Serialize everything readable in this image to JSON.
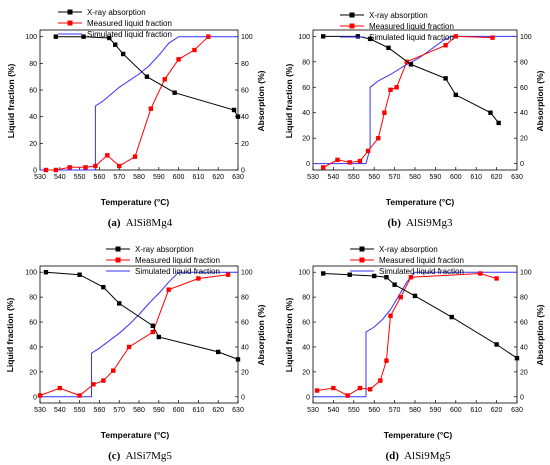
{
  "panels": [
    {
      "caption_letter": "(a)",
      "caption_text": "AlSi8Mg4",
      "xlabel": "Temperature (°C)",
      "ylabel_left": "Liquid fraction (%)",
      "ylabel_right": "Absorption (%)",
      "legend": [
        "X-ray absorption",
        "Measured liquid fraction",
        "Simulated liquid fraction"
      ]
    },
    {
      "caption_letter": "(b)",
      "caption_text": "AlSi9Mg3",
      "xlabel": "Temperature (°C)",
      "ylabel_left": "Liquid fraction (%)",
      "ylabel_right": "Absorption (%)",
      "legend": [
        "X-ray absorption",
        "Measured liquid fraction",
        "Simulated liquid fraction"
      ]
    },
    {
      "caption_letter": "(c)",
      "caption_text": "AlSi7Mg5",
      "xlabel": "Temperature (°C)",
      "ylabel_left": "Liquid fraction (%)",
      "ylabel_right": "Absorption (%)",
      "legend": [
        "X-ray absorption",
        "Measured liquid fraction",
        "Simulated liquid fraction"
      ]
    },
    {
      "caption_letter": "(d)",
      "caption_text": "AlSi9Mg5",
      "xlabel": "Temperature (°C)",
      "ylabel_left": "Liquid fraction (%)",
      "ylabel_right": "Absorption (%)",
      "legend": [
        "X-ray absorption",
        "Measured liquid  fraction",
        "Simulated liquid fraction"
      ]
    }
  ],
  "colors": {
    "xray": "#000000",
    "measured": "#ff0000",
    "simulated": "#3333ff"
  },
  "chart_data": [
    {
      "type": "line",
      "x_ticks": [
        530,
        540,
        550,
        560,
        570,
        580,
        590,
        600,
        610,
        620,
        630
      ],
      "xlim": [
        530,
        630
      ],
      "ylim": [
        0,
        105
      ],
      "y_ticks": [
        0,
        20,
        40,
        60,
        80,
        100
      ],
      "grid": false,
      "legend_position": "top-center",
      "series": [
        {
          "name": "X-ray absorption",
          "axis": "right",
          "marker": "square",
          "x": [
            538,
            552,
            565,
            568,
            572,
            584,
            598,
            628,
            630
          ],
          "y": [
            100,
            100,
            99,
            94,
            87,
            70,
            58,
            45,
            40
          ]
        },
        {
          "name": "Measured liquid fraction",
          "axis": "left",
          "marker": "square",
          "x": [
            533,
            538,
            545,
            553,
            558,
            564,
            570,
            578,
            586,
            593,
            600,
            608,
            615
          ],
          "y": [
            0,
            0,
            2,
            2,
            3,
            11,
            3,
            10,
            46,
            68,
            83,
            90,
            100
          ]
        },
        {
          "name": "Simulated liquid fraction",
          "axis": "left",
          "marker": "none",
          "x": [
            530,
            558,
            558,
            562,
            566,
            570,
            575,
            580,
            585,
            590,
            595,
            600,
            610,
            630
          ],
          "y": [
            0,
            0,
            48,
            52,
            57,
            62,
            67,
            72,
            78,
            86,
            95,
            100,
            100,
            100
          ]
        }
      ]
    },
    {
      "type": "line",
      "x_ticks": [
        530,
        540,
        550,
        560,
        570,
        580,
        590,
        600,
        610,
        620,
        630
      ],
      "xlim": [
        530,
        630
      ],
      "ylim": [
        -5,
        105
      ],
      "y_ticks": [
        0,
        20,
        40,
        60,
        80,
        100
      ],
      "grid": false,
      "legend_position": "top-center",
      "series": [
        {
          "name": "X-ray absorption",
          "axis": "right",
          "marker": "square",
          "x": [
            535,
            552,
            558,
            567,
            578,
            595,
            600,
            617,
            621
          ],
          "y": [
            100,
            100,
            98,
            91,
            78,
            67,
            54,
            40,
            32
          ]
        },
        {
          "name": "Measured liquid fraction",
          "axis": "left",
          "marker": "square",
          "x": [
            535,
            542,
            548,
            553,
            557,
            562,
            565,
            568,
            571,
            576,
            595,
            600,
            618
          ],
          "y": [
            -3,
            3,
            1,
            2,
            10,
            20,
            40,
            58,
            60,
            80,
            93,
            100,
            99
          ]
        },
        {
          "name": "Simulated liquid fraction",
          "axis": "left",
          "marker": "none",
          "x": [
            530,
            556,
            558,
            558,
            562,
            568,
            575,
            582,
            588,
            594,
            598,
            610,
            630
          ],
          "y": [
            0,
            0,
            12,
            60,
            65,
            70,
            77,
            83,
            90,
            97,
            100,
            100,
            100
          ]
        }
      ]
    },
    {
      "type": "line",
      "x_ticks": [
        530,
        540,
        550,
        560,
        570,
        580,
        590,
        600,
        610,
        620,
        630
      ],
      "xlim": [
        530,
        630
      ],
      "ylim": [
        -5,
        105
      ],
      "y_ticks": [
        0,
        20,
        40,
        60,
        80,
        100
      ],
      "grid": false,
      "legend_position": "top-center",
      "series": [
        {
          "name": "X-ray absorption",
          "axis": "right",
          "marker": "square",
          "x": [
            533,
            550,
            562,
            570,
            587,
            590,
            620,
            630
          ],
          "y": [
            100,
            98,
            88,
            75,
            57,
            48,
            36,
            30
          ]
        },
        {
          "name": "Measured liquid fraction",
          "axis": "left",
          "marker": "square",
          "x": [
            530,
            540,
            550,
            557,
            562,
            567,
            575,
            587,
            595,
            610,
            625
          ],
          "y": [
            1,
            7,
            1,
            10,
            13,
            21,
            40,
            52,
            86,
            95,
            98
          ]
        },
        {
          "name": "Simulated liquid fraction",
          "axis": "left",
          "marker": "none",
          "x": [
            530,
            556,
            556,
            560,
            565,
            570,
            575,
            580,
            585,
            590,
            595,
            600,
            630
          ],
          "y": [
            0,
            0,
            35,
            39,
            45,
            51,
            58,
            66,
            75,
            83,
            92,
            100,
            100
          ]
        }
      ]
    },
    {
      "type": "line",
      "x_ticks": [
        530,
        540,
        550,
        560,
        570,
        580,
        590,
        600,
        610,
        620,
        630
      ],
      "xlim": [
        530,
        630
      ],
      "ylim": [
        -5,
        105
      ],
      "y_ticks": [
        0,
        20,
        40,
        60,
        80,
        100
      ],
      "grid": false,
      "legend_position": "top-center",
      "series": [
        {
          "name": "X-ray absorption",
          "axis": "right",
          "marker": "square",
          "x": [
            535,
            548,
            560,
            566,
            570,
            580,
            598,
            620,
            630
          ],
          "y": [
            99,
            98,
            97,
            96,
            90,
            81,
            64,
            42,
            31
          ]
        },
        {
          "name": "Measured liquid  fraction",
          "axis": "left",
          "marker": "square",
          "x": [
            532,
            540,
            547,
            553,
            558,
            563,
            566,
            568,
            573,
            578,
            612,
            620
          ],
          "y": [
            5,
            7,
            1,
            7,
            6,
            13,
            29,
            65,
            80,
            96,
            99,
            95
          ]
        },
        {
          "name": "Simulated liquid fraction",
          "axis": "left",
          "marker": "none",
          "x": [
            530,
            556,
            556,
            560,
            564,
            568,
            572,
            576,
            580,
            630
          ],
          "y": [
            0,
            0,
            52,
            56,
            62,
            70,
            81,
            92,
            100,
            100
          ]
        }
      ]
    }
  ]
}
